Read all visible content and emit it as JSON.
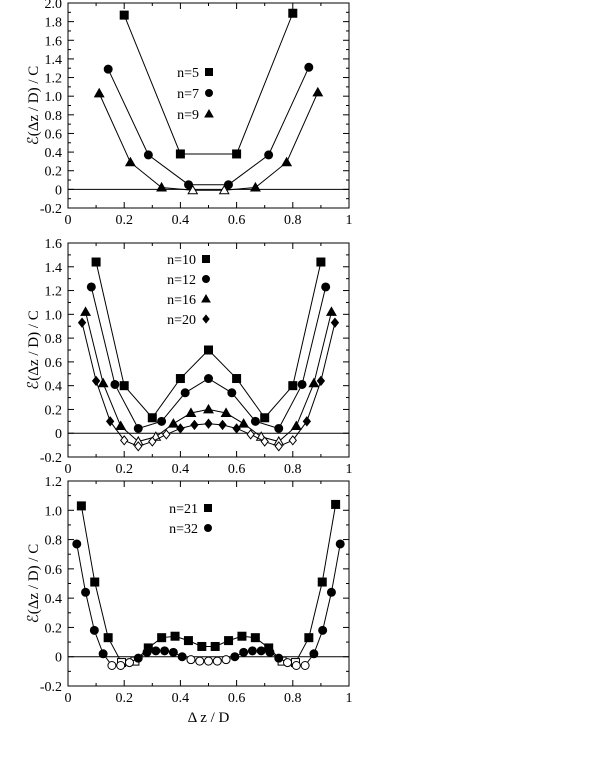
{
  "chart_data": [
    {
      "type": "line",
      "xlim": [
        0,
        1
      ],
      "ylim": [
        -0.2,
        2.0
      ],
      "x_ticks": [
        "0",
        "0.2",
        "0.4",
        "0.6",
        "0.8",
        "1"
      ],
      "y_ticks": [
        "-0.2",
        "0",
        "0.2",
        "0.4",
        "0.6",
        "0.8",
        "1.0",
        "1.2",
        "1.4",
        "1.6",
        "1.8",
        "2.0"
      ],
      "ylabel": "ℰ(Δz / D) / C",
      "xlabel": "",
      "zero_line": true,
      "legend_placement": "center",
      "series": [
        {
          "name": "n=5",
          "marker": "square",
          "x": [
            0.2,
            0.4,
            0.6,
            0.8
          ],
          "y": [
            1.87,
            0.38,
            0.38,
            1.89
          ],
          "open": [
            false,
            false,
            false,
            false
          ]
        },
        {
          "name": "n=7",
          "marker": "circle",
          "x": [
            0.143,
            0.286,
            0.429,
            0.571,
            0.714,
            0.857
          ],
          "y": [
            1.29,
            0.37,
            0.05,
            0.05,
            0.37,
            1.31
          ],
          "open": [
            false,
            false,
            false,
            false,
            false,
            false
          ]
        },
        {
          "name": "n=9",
          "marker": "triangle",
          "x": [
            0.111,
            0.222,
            0.333,
            0.444,
            0.556,
            0.667,
            0.778,
            0.889
          ],
          "y": [
            1.03,
            0.29,
            0.02,
            -0.01,
            -0.01,
            0.02,
            0.29,
            1.04
          ],
          "open": [
            false,
            false,
            false,
            true,
            true,
            false,
            false,
            false
          ]
        }
      ]
    },
    {
      "type": "line",
      "xlim": [
        0,
        1
      ],
      "ylim": [
        -0.2,
        1.6
      ],
      "x_ticks": [
        "0",
        "0.2",
        "0.4",
        "0.6",
        "0.8",
        "1"
      ],
      "y_ticks": [
        "-0.2",
        "0",
        "0.2",
        "0.4",
        "0.6",
        "0.8",
        "1.0",
        "1.2",
        "1.4",
        "1.6"
      ],
      "ylabel": "ℰ(Δz / D) / C",
      "xlabel": "",
      "zero_line": true,
      "legend_placement": "top-center",
      "series": [
        {
          "name": "n=10",
          "marker": "square",
          "x": [
            0.1,
            0.2,
            0.3,
            0.4,
            0.5,
            0.6,
            0.7,
            0.8,
            0.9
          ],
          "y": [
            1.44,
            0.4,
            0.13,
            0.46,
            0.7,
            0.46,
            0.13,
            0.4,
            1.44
          ],
          "open": [
            false,
            false,
            false,
            false,
            false,
            false,
            false,
            false,
            false
          ]
        },
        {
          "name": "n=12",
          "marker": "circle",
          "x": [
            0.083,
            0.167,
            0.25,
            0.333,
            0.417,
            0.5,
            0.583,
            0.667,
            0.75,
            0.833,
            0.917
          ],
          "y": [
            1.23,
            0.41,
            0.04,
            0.1,
            0.34,
            0.46,
            0.34,
            0.1,
            0.04,
            0.41,
            1.23
          ],
          "open": [
            false,
            false,
            false,
            false,
            false,
            false,
            false,
            false,
            false,
            false,
            false
          ]
        },
        {
          "name": "n=16",
          "marker": "triangle",
          "x": [
            0.0625,
            0.125,
            0.1875,
            0.25,
            0.3125,
            0.375,
            0.4375,
            0.5,
            0.5625,
            0.625,
            0.6875,
            0.75,
            0.8125,
            0.875,
            0.9375
          ],
          "y": [
            1.02,
            0.42,
            0.06,
            -0.07,
            -0.03,
            0.08,
            0.17,
            0.2,
            0.17,
            0.08,
            -0.03,
            -0.07,
            0.06,
            0.42,
            1.02
          ],
          "open": [
            false,
            false,
            false,
            true,
            true,
            false,
            false,
            false,
            false,
            false,
            true,
            true,
            false,
            false,
            false
          ]
        },
        {
          "name": "n=20",
          "marker": "diamond",
          "x": [
            0.05,
            0.1,
            0.15,
            0.2,
            0.25,
            0.3,
            0.35,
            0.4,
            0.45,
            0.5,
            0.55,
            0.6,
            0.65,
            0.7,
            0.75,
            0.8,
            0.85,
            0.9,
            0.95
          ],
          "y": [
            0.93,
            0.44,
            0.1,
            -0.06,
            -0.11,
            -0.07,
            -0.01,
            0.04,
            0.07,
            0.08,
            0.07,
            0.04,
            -0.01,
            -0.07,
            -0.11,
            -0.06,
            0.1,
            0.44,
            0.93
          ],
          "open": [
            false,
            false,
            false,
            true,
            true,
            true,
            true,
            false,
            false,
            false,
            false,
            false,
            true,
            true,
            true,
            true,
            false,
            false,
            false
          ]
        }
      ]
    },
    {
      "type": "line",
      "xlim": [
        0,
        1
      ],
      "ylim": [
        -0.2,
        1.2
      ],
      "x_ticks": [
        "0",
        "0.2",
        "0.4",
        "0.6",
        "0.8",
        "1"
      ],
      "y_ticks": [
        "-0.2",
        "0",
        "0.2",
        "0.4",
        "0.6",
        "0.8",
        "1.0",
        "1.2"
      ],
      "ylabel": "ℰ(Δz / D) / C",
      "xlabel": "Δ z / D",
      "zero_line": true,
      "legend_placement": "top-center",
      "series": [
        {
          "name": "n=21",
          "marker": "square",
          "x": [
            0.0476,
            0.0952,
            0.1429,
            0.1905,
            0.2381,
            0.2857,
            0.3333,
            0.381,
            0.4286,
            0.4762,
            0.5238,
            0.5714,
            0.619,
            0.6667,
            0.7143,
            0.7619,
            0.8095,
            0.8571,
            0.9048,
            0.9524
          ],
          "y": [
            1.03,
            0.51,
            0.13,
            -0.04,
            -0.03,
            0.06,
            0.13,
            0.14,
            0.11,
            0.07,
            0.07,
            0.11,
            0.14,
            0.13,
            0.06,
            -0.03,
            -0.04,
            0.13,
            0.51,
            1.04
          ],
          "open": [
            false,
            false,
            false,
            true,
            true,
            false,
            false,
            false,
            false,
            false,
            false,
            false,
            false,
            false,
            false,
            true,
            true,
            false,
            false,
            false
          ]
        },
        {
          "name": "n=32",
          "marker": "circle",
          "x": [
            0.03125,
            0.0625,
            0.09375,
            0.125,
            0.15625,
            0.1875,
            0.21875,
            0.25,
            0.28125,
            0.3125,
            0.34375,
            0.375,
            0.40625,
            0.4375,
            0.46875,
            0.5,
            0.53125,
            0.5625,
            0.59375,
            0.625,
            0.65625,
            0.6875,
            0.71875,
            0.75,
            0.78125,
            0.8125,
            0.84375,
            0.875,
            0.90625,
            0.9375,
            0.96875
          ],
          "y": [
            0.77,
            0.44,
            0.18,
            0.02,
            -0.06,
            -0.06,
            -0.04,
            -0.01,
            0.03,
            0.04,
            0.04,
            0.03,
            0.0,
            -0.02,
            -0.03,
            -0.03,
            -0.03,
            -0.02,
            0.0,
            0.03,
            0.04,
            0.04,
            0.03,
            -0.01,
            -0.04,
            -0.06,
            -0.06,
            0.02,
            0.18,
            0.44,
            0.77
          ],
          "open": [
            false,
            false,
            false,
            false,
            true,
            true,
            true,
            false,
            false,
            false,
            false,
            false,
            false,
            true,
            true,
            true,
            true,
            true,
            false,
            false,
            false,
            false,
            false,
            false,
            true,
            true,
            true,
            false,
            false,
            false,
            false
          ]
        }
      ]
    }
  ]
}
